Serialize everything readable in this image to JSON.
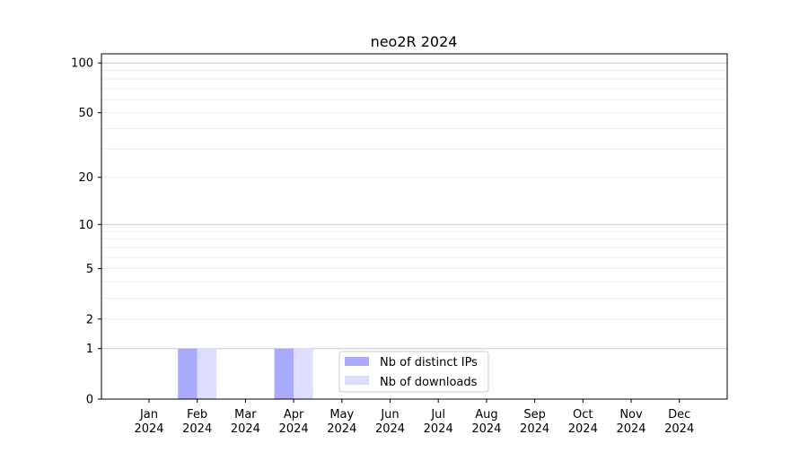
{
  "chart_data": {
    "type": "bar",
    "title": "neo2R 2024",
    "xlabel": "",
    "ylabel": "",
    "yscale": "log(1+y)",
    "ylim": [
      0,
      113
    ],
    "grid": "horizontal, major and minor",
    "legend_position": "lower-center",
    "categories": [
      [
        "Jan",
        "2024"
      ],
      [
        "Feb",
        "2024"
      ],
      [
        "Mar",
        "2024"
      ],
      [
        "Apr",
        "2024"
      ],
      [
        "May",
        "2024"
      ],
      [
        "Jun",
        "2024"
      ],
      [
        "Jul",
        "2024"
      ],
      [
        "Aug",
        "2024"
      ],
      [
        "Sep",
        "2024"
      ],
      [
        "Oct",
        "2024"
      ],
      [
        "Nov",
        "2024"
      ],
      [
        "Dec",
        "2024"
      ]
    ],
    "yticks": [
      0,
      1,
      2,
      5,
      10,
      20,
      50,
      100
    ],
    "series": [
      {
        "name": "Nb of distinct IPs",
        "color": "#aaaaff",
        "values": [
          0,
          1,
          0,
          1,
          0,
          0,
          0,
          0,
          0,
          0,
          0,
          0
        ]
      },
      {
        "name": "Nb of downloads",
        "color": "#ddddff",
        "values": [
          0,
          1,
          0,
          1,
          0,
          0,
          0,
          0,
          0,
          0,
          0,
          0
        ]
      }
    ]
  }
}
